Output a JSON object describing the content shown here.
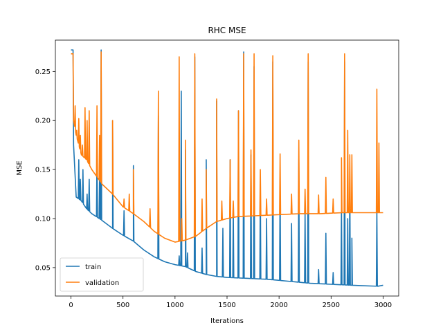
{
  "chart_data": {
    "type": "line",
    "title": "RHC MSE",
    "xlabel": "Iterations",
    "ylabel": "MSE",
    "xlim": [
      -150,
      3150
    ],
    "ylim": [
      0.021,
      0.282
    ],
    "xticks": [
      0,
      500,
      1000,
      1500,
      2000,
      2500,
      3000
    ],
    "yticks": [
      0.05,
      0.1,
      0.15,
      0.2,
      0.25
    ],
    "ytick_labels": [
      "0.05",
      "0.10",
      "0.15",
      "0.20",
      "0.25"
    ],
    "grid": false,
    "legend": "lower-left",
    "series": [
      {
        "name": "train",
        "color": "#1f77b4",
        "base": [
          [
            0,
            0.272
          ],
          [
            20,
            0.272
          ],
          [
            25,
            0.175
          ],
          [
            50,
            0.122
          ],
          [
            100,
            0.118
          ],
          [
            150,
            0.11
          ],
          [
            200,
            0.105
          ],
          [
            300,
            0.098
          ],
          [
            400,
            0.09
          ],
          [
            500,
            0.083
          ],
          [
            600,
            0.077
          ],
          [
            700,
            0.068
          ],
          [
            800,
            0.061
          ],
          [
            900,
            0.056
          ],
          [
            1000,
            0.053
          ],
          [
            1100,
            0.051
          ],
          [
            1200,
            0.046
          ],
          [
            1300,
            0.043
          ],
          [
            1400,
            0.041
          ],
          [
            1500,
            0.04
          ],
          [
            1700,
            0.039
          ],
          [
            1900,
            0.038
          ],
          [
            2100,
            0.036
          ],
          [
            2300,
            0.034
          ],
          [
            2500,
            0.033
          ],
          [
            2700,
            0.032
          ],
          [
            2800,
            0.0315
          ],
          [
            2950,
            0.031
          ],
          [
            3000,
            0.032
          ]
        ],
        "spikes": [
          [
            75,
            0.16
          ],
          [
            90,
            0.14
          ],
          [
            115,
            0.15
          ],
          [
            155,
            0.125
          ],
          [
            175,
            0.14
          ],
          [
            250,
            0.165
          ],
          [
            275,
            0.145
          ],
          [
            290,
            0.272
          ],
          [
            400,
            0.2
          ],
          [
            510,
            0.108
          ],
          [
            600,
            0.154
          ],
          [
            840,
            0.205
          ],
          [
            1040,
            0.062
          ],
          [
            1060,
            0.23
          ],
          [
            1100,
            0.17
          ],
          [
            1120,
            0.065
          ],
          [
            1190,
            0.265
          ],
          [
            1260,
            0.07
          ],
          [
            1300,
            0.16
          ],
          [
            1400,
            0.22
          ],
          [
            1460,
            0.09
          ],
          [
            1530,
            0.16
          ],
          [
            1560,
            0.11
          ],
          [
            1610,
            0.21
          ],
          [
            1660,
            0.27
          ],
          [
            1730,
            0.165
          ],
          [
            1760,
            0.255
          ],
          [
            1820,
            0.135
          ],
          [
            1880,
            0.1
          ],
          [
            1940,
            0.26
          ],
          [
            2010,
            0.14
          ],
          [
            2120,
            0.095
          ],
          [
            2190,
            0.16
          ],
          [
            2250,
            0.106
          ],
          [
            2280,
            0.26
          ],
          [
            2380,
            0.048
          ],
          [
            2450,
            0.085
          ],
          [
            2520,
            0.045
          ],
          [
            2600,
            0.11
          ],
          [
            2630,
            0.26
          ],
          [
            2660,
            0.1
          ],
          [
            2680,
            0.14
          ],
          [
            2700,
            0.08
          ],
          [
            2940,
            0.11
          ]
        ]
      },
      {
        "name": "validation",
        "color": "#ff7f0e",
        "base": [
          [
            0,
            0.268
          ],
          [
            20,
            0.268
          ],
          [
            25,
            0.2
          ],
          [
            50,
            0.185
          ],
          [
            100,
            0.165
          ],
          [
            150,
            0.16
          ],
          [
            200,
            0.15
          ],
          [
            300,
            0.135
          ],
          [
            400,
            0.125
          ],
          [
            500,
            0.112
          ],
          [
            600,
            0.105
          ],
          [
            700,
            0.097
          ],
          [
            800,
            0.087
          ],
          [
            900,
            0.08
          ],
          [
            1000,
            0.076
          ],
          [
            1100,
            0.078
          ],
          [
            1200,
            0.082
          ],
          [
            1300,
            0.09
          ],
          [
            1400,
            0.097
          ],
          [
            1500,
            0.1
          ],
          [
            1600,
            0.102
          ],
          [
            1800,
            0.103
          ],
          [
            2000,
            0.104
          ],
          [
            2200,
            0.105
          ],
          [
            2400,
            0.105
          ],
          [
            2600,
            0.106
          ],
          [
            2800,
            0.106
          ],
          [
            3000,
            0.106
          ]
        ],
        "spikes": [
          [
            40,
            0.215
          ],
          [
            55,
            0.19
          ],
          [
            75,
            0.202
          ],
          [
            90,
            0.185
          ],
          [
            110,
            0.175
          ],
          [
            135,
            0.213
          ],
          [
            155,
            0.2
          ],
          [
            175,
            0.21
          ],
          [
            250,
            0.215
          ],
          [
            275,
            0.185
          ],
          [
            290,
            0.27
          ],
          [
            400,
            0.2
          ],
          [
            510,
            0.12
          ],
          [
            560,
            0.125
          ],
          [
            600,
            0.15
          ],
          [
            760,
            0.11
          ],
          [
            840,
            0.23
          ],
          [
            1040,
            0.265
          ],
          [
            1065,
            0.1
          ],
          [
            1100,
            0.18
          ],
          [
            1190,
            0.268
          ],
          [
            1260,
            0.12
          ],
          [
            1300,
            0.15
          ],
          [
            1400,
            0.222
          ],
          [
            1450,
            0.118
          ],
          [
            1530,
            0.16
          ],
          [
            1560,
            0.118
          ],
          [
            1610,
            0.21
          ],
          [
            1660,
            0.268
          ],
          [
            1730,
            0.17
          ],
          [
            1760,
            0.268
          ],
          [
            1820,
            0.15
          ],
          [
            1880,
            0.12
          ],
          [
            1940,
            0.266
          ],
          [
            2010,
            0.166
          ],
          [
            2120,
            0.125
          ],
          [
            2190,
            0.18
          ],
          [
            2250,
            0.13
          ],
          [
            2280,
            0.268
          ],
          [
            2380,
            0.124
          ],
          [
            2450,
            0.142
          ],
          [
            2520,
            0.12
          ],
          [
            2600,
            0.162
          ],
          [
            2630,
            0.268
          ],
          [
            2660,
            0.19
          ],
          [
            2680,
            0.165
          ],
          [
            2700,
            0.165
          ],
          [
            2940,
            0.232
          ],
          [
            2960,
            0.177
          ]
        ]
      }
    ]
  }
}
